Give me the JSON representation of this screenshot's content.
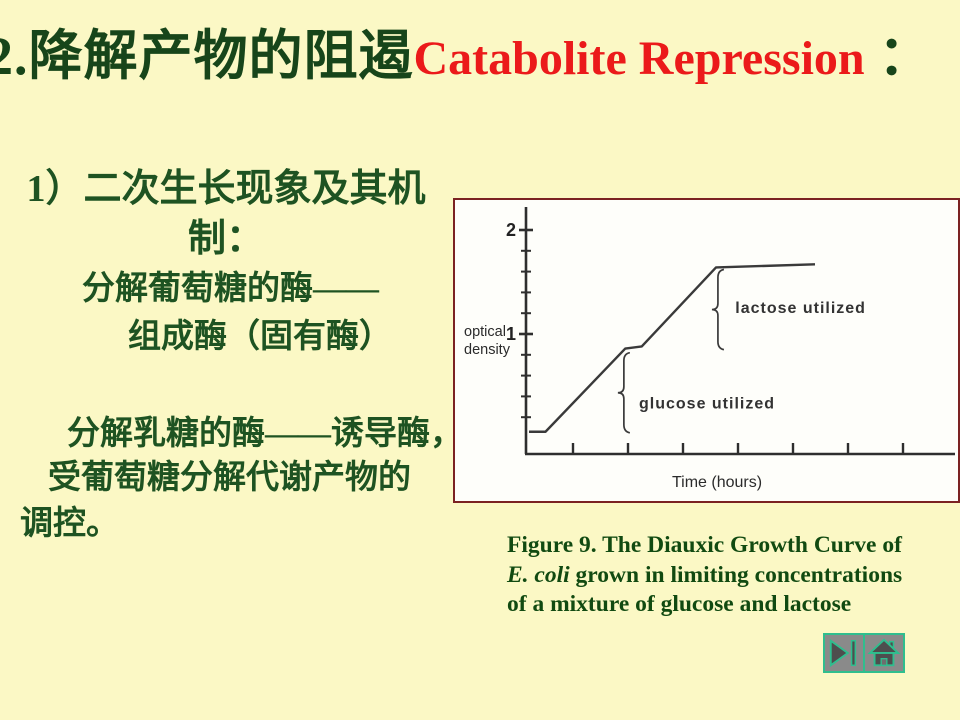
{
  "slide_title": {
    "zh": "2.降解产物的阻遏",
    "en": "Catabolite Repression",
    "suffix": " ："
  },
  "left_panel": {
    "heading_lines": [
      "1）二次生长现象及其机",
      "制："
    ],
    "glucose_lines": [
      "分解葡萄糖的酶——",
      "组成酶（固有酶）"
    ],
    "lactose_lines": [
      "分解乳糖的酶——诱导酶，",
      "受葡萄糖分解代谢产物的",
      "调控。"
    ]
  },
  "figure_caption": {
    "line1": "Figure 9. The Diauxic Growth Curve of",
    "line2_italic": "E. coli",
    "line2_rest": " grown in limiting concentrations",
    "line3": "of a mixture of glucose and lactose"
  },
  "nav_buttons": {
    "next_icon": "skip-to-end",
    "home_icon": "home"
  },
  "colors": {
    "background": "#FBF8C5",
    "title_green": "#17451A",
    "title_red": "#EB1A1A",
    "body_green": "#1E5322",
    "caption_green": "#114A11",
    "figure_border_maroon": "#7B2222",
    "figure_background": "#FEFEFA",
    "button_teal": "#2FBE8E",
    "button_gray": "#8A8A8A",
    "icon_dark_gray": "#4E4E4E",
    "chart_ink": "#3A3A3A"
  },
  "chart_data": {
    "type": "line",
    "title": "",
    "xlabel": "Time (hours)",
    "ylabel": "optical density",
    "ylabel_lines": [
      "optical",
      "density"
    ],
    "x_axis": {
      "unit": "hours",
      "tick_times": [
        2,
        4,
        6,
        8,
        10,
        12,
        14
      ],
      "tick_labels_shown": false,
      "range": [
        0,
        16
      ]
    },
    "y_axis": {
      "labeled_ticks": [
        1,
        2
      ],
      "minor_tick_step": 0.2,
      "range": [
        0,
        2.2
      ]
    },
    "grid": false,
    "legend": "none",
    "series": [
      {
        "name": "E. coli diauxic growth (optical density vs time)",
        "points": [
          [
            0.4,
            0.06
          ],
          [
            1.0,
            0.06
          ],
          [
            3.9,
            0.86
          ],
          [
            4.5,
            0.88
          ],
          [
            7.2,
            1.64
          ],
          [
            10.8,
            1.67
          ]
        ]
      }
    ],
    "annotations": [
      {
        "label": "glucose utilized",
        "brace": {
          "t": 3.85,
          "od_from": 0.05,
          "od_to": 0.82
        },
        "label_at": {
          "t": 4.4,
          "od": 0.34
        }
      },
      {
        "label": "lactose utilized",
        "brace": {
          "t": 7.27,
          "od_from": 0.85,
          "od_to": 1.62
        },
        "label_at": {
          "t": 7.9,
          "od": 1.26
        }
      }
    ]
  }
}
